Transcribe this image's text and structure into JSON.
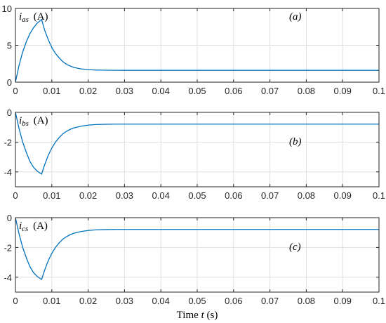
{
  "chart_data": [
    {
      "type": "line",
      "panel_label": "(a)",
      "ylabel": "i_as (A)",
      "ylabel_var": "i",
      "ylabel_sub": "as",
      "ylabel_unit": "(A)",
      "xlabel": "",
      "xlim": [
        0,
        0.1
      ],
      "ylim": [
        0,
        10
      ],
      "xticks": [
        "0",
        "0.01",
        "0.02",
        "0.03",
        "0.04",
        "0.05",
        "0.06",
        "0.07",
        "0.08",
        "0.09",
        "0.1"
      ],
      "yticks": [
        "0",
        "5",
        "10"
      ],
      "grid": true,
      "series": [
        {
          "color": "#0072BD",
          "x": [
            0,
            0.001,
            0.002,
            0.003,
            0.004,
            0.005,
            0.006,
            0.0072,
            0.008,
            0.009,
            0.01,
            0.011,
            0.012,
            0.013,
            0.014,
            0.015,
            0.016,
            0.018,
            0.02,
            0.022,
            0.025,
            0.028,
            0.03,
            0.035,
            0.04,
            0.05,
            0.06,
            0.07,
            0.08,
            0.09,
            0.1
          ],
          "y": [
            0,
            2.3,
            4.1,
            5.5,
            6.6,
            7.4,
            8.0,
            8.5,
            7.1,
            5.8,
            4.7,
            3.9,
            3.3,
            2.8,
            2.45,
            2.2,
            2.0,
            1.8,
            1.7,
            1.65,
            1.62,
            1.61,
            1.6,
            1.6,
            1.6,
            1.6,
            1.6,
            1.6,
            1.6,
            1.6,
            1.6
          ]
        }
      ]
    },
    {
      "type": "line",
      "panel_label": "(b)",
      "ylabel": "i_bs (A)",
      "ylabel_var": "i",
      "ylabel_sub": "bs",
      "ylabel_unit": "(A)",
      "xlabel": "",
      "xlim": [
        0,
        0.1
      ],
      "ylim": [
        -5,
        0
      ],
      "xticks": [
        "0",
        "0.01",
        "0.02",
        "0.03",
        "0.04",
        "0.05",
        "0.06",
        "0.07",
        "0.08",
        "0.09",
        "0.1"
      ],
      "yticks": [
        "-4",
        "-2",
        "0"
      ],
      "grid": true,
      "series": [
        {
          "color": "#0072BD",
          "x": [
            0,
            0.001,
            0.002,
            0.003,
            0.004,
            0.005,
            0.006,
            0.0072,
            0.008,
            0.009,
            0.01,
            0.011,
            0.012,
            0.013,
            0.014,
            0.015,
            0.016,
            0.018,
            0.02,
            0.022,
            0.025,
            0.028,
            0.03,
            0.035,
            0.04,
            0.05,
            0.06,
            0.07,
            0.08,
            0.09,
            0.1
          ],
          "y": [
            0,
            -1.1,
            -2.0,
            -2.7,
            -3.3,
            -3.7,
            -3.95,
            -4.15,
            -3.55,
            -2.9,
            -2.4,
            -2.0,
            -1.7,
            -1.45,
            -1.28,
            -1.15,
            -1.05,
            -0.93,
            -0.86,
            -0.82,
            -0.8,
            -0.79,
            -0.79,
            -0.79,
            -0.79,
            -0.79,
            -0.79,
            -0.79,
            -0.79,
            -0.79,
            -0.79
          ]
        }
      ]
    },
    {
      "type": "line",
      "panel_label": "(c)",
      "ylabel": "i_cs (A)",
      "ylabel_var": "i",
      "ylabel_sub": "cs",
      "ylabel_unit": "(A)",
      "xlabel": "Time t (s)",
      "xlabel_text": "Time",
      "xlabel_var": "t",
      "xlabel_unit": "(s)",
      "xlim": [
        0,
        0.1
      ],
      "ylim": [
        -5,
        0
      ],
      "xticks": [
        "0",
        "0.01",
        "0.02",
        "0.03",
        "0.04",
        "0.05",
        "0.06",
        "0.07",
        "0.08",
        "0.09",
        "0.1"
      ],
      "yticks": [
        "-4",
        "-2",
        "0"
      ],
      "grid": true,
      "series": [
        {
          "color": "#0072BD",
          "x": [
            0,
            0.001,
            0.002,
            0.003,
            0.004,
            0.005,
            0.006,
            0.0072,
            0.008,
            0.009,
            0.01,
            0.011,
            0.012,
            0.013,
            0.014,
            0.015,
            0.016,
            0.018,
            0.02,
            0.022,
            0.025,
            0.028,
            0.03,
            0.035,
            0.04,
            0.05,
            0.06,
            0.07,
            0.08,
            0.09,
            0.1
          ],
          "y": [
            0,
            -1.1,
            -2.0,
            -2.7,
            -3.3,
            -3.7,
            -3.95,
            -4.15,
            -3.55,
            -2.9,
            -2.4,
            -2.0,
            -1.7,
            -1.45,
            -1.28,
            -1.15,
            -1.05,
            -0.93,
            -0.86,
            -0.82,
            -0.8,
            -0.79,
            -0.79,
            -0.79,
            -0.79,
            -0.79,
            -0.79,
            -0.79,
            -0.79,
            -0.79,
            -0.79
          ]
        }
      ]
    }
  ]
}
